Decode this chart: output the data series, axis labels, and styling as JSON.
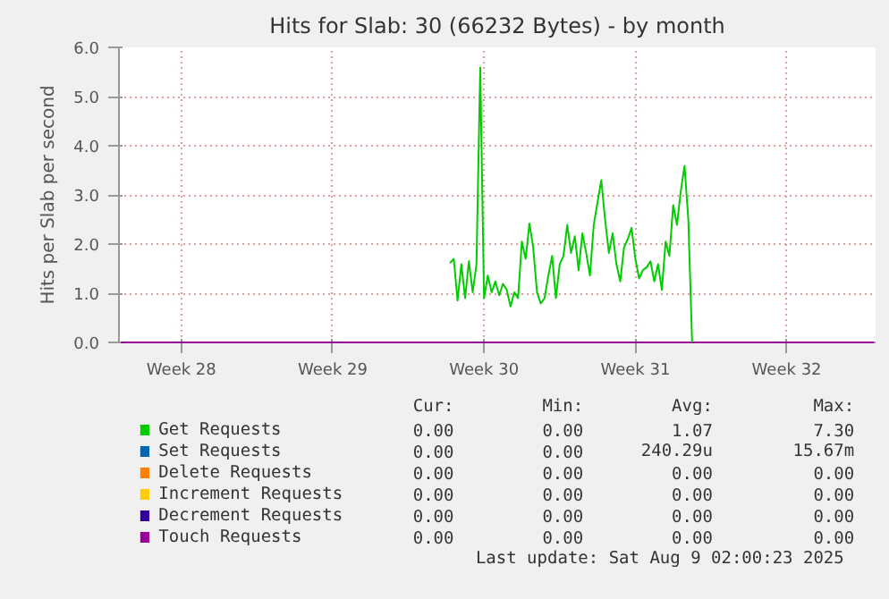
{
  "chart_data": {
    "type": "line",
    "title": "Hits for Slab: 30 (66232 Bytes) - by month",
    "ylabel": "Hits per Slab per second",
    "categories": [
      null,
      null,
      null,
      null,
      null,
      null,
      null,
      null,
      null,
      null,
      null,
      null,
      null,
      null,
      null,
      null,
      "Week 28",
      null,
      null,
      null,
      null,
      null,
      null,
      null,
      null,
      null,
      null,
      null,
      null,
      null,
      null,
      null,
      null,
      null,
      null,
      null,
      null,
      null,
      null,
      null,
      null,
      null,
      null,
      null,
      null,
      null,
      null,
      null,
      null,
      null,
      null,
      null,
      null,
      null,
      null,
      null,
      "Week 29",
      null,
      null,
      null,
      null,
      null,
      null,
      null,
      null,
      null,
      null,
      null,
      null,
      null,
      null,
      null,
      null,
      null,
      null,
      null,
      null,
      null,
      null,
      null,
      null,
      null,
      null,
      null,
      null,
      null,
      null,
      null,
      null,
      null,
      null,
      null,
      null,
      null,
      null,
      null,
      "Week 30",
      null,
      null,
      null,
      null,
      null,
      null,
      null,
      null,
      null,
      null,
      null,
      null,
      null,
      null,
      null,
      null,
      null,
      null,
      null,
      null,
      null,
      null,
      null,
      null,
      null,
      null,
      null,
      null,
      null,
      null,
      null,
      null,
      null,
      null,
      null,
      null,
      null,
      null,
      null,
      "Week 31",
      null,
      null,
      null,
      null,
      null,
      null,
      null,
      null,
      null,
      null,
      null,
      null,
      null,
      null,
      null,
      null,
      null,
      null,
      null,
      null,
      null,
      null,
      null,
      null,
      null,
      null,
      null,
      null,
      null,
      null,
      null,
      null,
      null,
      null,
      null,
      null,
      null,
      null,
      null,
      "Week 32",
      null,
      null,
      null,
      null,
      null,
      null,
      null,
      null,
      null,
      null,
      null,
      null,
      null,
      null,
      null,
      null,
      null,
      null,
      null,
      null,
      null,
      null,
      null
    ],
    "ylim": [
      0,
      6
    ],
    "yticks": [
      {
        "value": 0,
        "label": "0.0"
      },
      {
        "value": 1,
        "label": "1.0"
      },
      {
        "value": 2,
        "label": "2.0"
      },
      {
        "value": 3,
        "label": "3.0"
      },
      {
        "value": 4,
        "label": "4.0"
      },
      {
        "value": 5,
        "label": "5.0"
      },
      {
        "value": 6,
        "label": "6.0"
      }
    ],
    "grid": true,
    "legend": "bottom",
    "line_style": "solid",
    "series": [
      {
        "name": "Set Requests",
        "color": "#0066b3",
        "values": [
          null,
          null,
          null,
          null,
          null,
          null,
          null,
          null,
          null,
          null,
          null,
          null,
          null,
          null,
          null,
          null,
          null,
          null,
          null,
          null,
          null,
          null,
          null,
          null,
          null,
          null,
          null,
          null,
          null,
          null,
          null,
          null,
          null,
          null,
          null,
          null,
          null,
          null,
          null,
          null,
          null,
          null,
          null,
          null,
          null,
          null,
          null,
          null,
          null,
          null,
          null,
          null,
          null,
          null,
          null,
          null,
          null,
          null,
          null,
          null,
          null,
          null,
          null,
          null,
          null,
          null,
          null,
          null,
          null,
          null,
          null,
          null,
          null,
          null,
          null,
          null,
          null,
          null,
          null,
          null,
          null,
          null,
          null,
          null,
          null,
          null,
          null,
          null,
          null,
          null,
          null,
          null,
          null,
          null,
          null,
          null,
          null,
          null,
          null,
          null,
          null,
          null,
          null,
          null,
          null,
          null,
          null,
          null,
          null,
          null,
          null,
          null,
          null,
          null,
          null,
          null,
          null,
          null,
          null,
          null,
          null,
          null,
          null,
          null,
          null,
          null,
          null,
          null,
          null,
          null,
          null,
          null,
          null,
          null,
          null,
          null,
          null,
          null,
          null,
          null,
          null,
          null,
          null,
          null,
          null,
          null,
          null,
          null,
          null,
          null,
          null,
          null,
          null,
          null,
          null,
          null,
          null,
          null,
          null,
          null,
          null,
          null,
          null,
          null,
          null,
          null,
          null,
          null,
          null,
          null,
          null,
          null,
          null,
          null,
          null,
          null,
          null,
          null,
          null,
          null,
          null,
          null,
          null,
          null,
          null,
          null,
          null,
          null,
          null,
          null,
          null,
          null,
          null,
          null,
          null,
          null,
          null,
          null,
          null,
          null
        ]
      },
      {
        "name": "Delete Requests",
        "color": "#ff8000",
        "values": [
          null,
          null,
          null,
          null,
          null,
          null,
          null,
          null,
          null,
          null,
          null,
          null,
          null,
          null,
          null,
          null,
          null,
          null,
          null,
          null,
          null,
          null,
          null,
          null,
          null,
          null,
          null,
          null,
          null,
          null,
          null,
          null,
          null,
          null,
          null,
          null,
          null,
          null,
          null,
          null,
          null,
          null,
          null,
          null,
          null,
          null,
          null,
          null,
          null,
          null,
          null,
          null,
          null,
          null,
          null,
          null,
          null,
          null,
          null,
          null,
          null,
          null,
          null,
          null,
          null,
          null,
          null,
          null,
          null,
          null,
          null,
          null,
          null,
          null,
          null,
          null,
          null,
          null,
          null,
          null,
          null,
          null,
          null,
          null,
          null,
          null,
          null,
          null,
          null,
          null,
          null,
          null,
          null,
          null,
          null,
          null,
          null,
          null,
          null,
          null,
          null,
          null,
          null,
          null,
          null,
          null,
          null,
          null,
          null,
          null,
          null,
          null,
          null,
          null,
          null,
          null,
          null,
          null,
          null,
          null,
          null,
          null,
          null,
          null,
          null,
          null,
          null,
          null,
          null,
          null,
          null,
          null,
          null,
          null,
          null,
          null,
          null,
          null,
          null,
          null,
          null,
          null,
          null,
          null,
          null,
          null,
          null,
          null,
          null,
          null,
          null,
          null,
          null,
          null,
          null,
          null,
          null,
          null,
          null,
          null,
          null,
          null,
          null,
          null,
          null,
          null,
          null,
          null,
          null,
          null,
          null,
          null,
          null,
          null,
          null,
          null,
          null,
          null,
          null,
          null,
          null,
          null,
          null,
          null,
          null,
          null,
          null,
          null,
          null,
          null,
          null,
          null,
          null,
          null,
          null,
          null,
          null,
          null,
          null,
          null
        ]
      },
      {
        "name": "Increment Requests",
        "color": "#ffcc00",
        "values": [
          null,
          null,
          null,
          null,
          null,
          null,
          null,
          null,
          null,
          null,
          null,
          null,
          null,
          null,
          null,
          null,
          null,
          null,
          null,
          null,
          null,
          null,
          null,
          null,
          null,
          null,
          null,
          null,
          null,
          null,
          null,
          null,
          null,
          null,
          null,
          null,
          null,
          null,
          null,
          null,
          null,
          null,
          null,
          null,
          null,
          null,
          null,
          null,
          null,
          null,
          null,
          null,
          null,
          null,
          null,
          null,
          null,
          null,
          null,
          null,
          null,
          null,
          null,
          null,
          null,
          null,
          null,
          null,
          null,
          null,
          null,
          null,
          null,
          null,
          null,
          null,
          null,
          null,
          null,
          null,
          null,
          null,
          null,
          null,
          null,
          null,
          null,
          null,
          null,
          null,
          null,
          null,
          null,
          null,
          null,
          null,
          null,
          null,
          null,
          null,
          null,
          null,
          null,
          null,
          null,
          null,
          null,
          null,
          null,
          null,
          null,
          null,
          null,
          null,
          null,
          null,
          null,
          null,
          null,
          null,
          null,
          null,
          null,
          null,
          null,
          null,
          null,
          null,
          null,
          null,
          null,
          null,
          null,
          null,
          null,
          null,
          null,
          null,
          null,
          null,
          null,
          null,
          null,
          null,
          null,
          null,
          null,
          null,
          null,
          null,
          null,
          null,
          null,
          null,
          null,
          null,
          null,
          null,
          null,
          null,
          null,
          null,
          null,
          null,
          null,
          null,
          null,
          null,
          null,
          null,
          null,
          null,
          null,
          null,
          null,
          null,
          null,
          null,
          null,
          null,
          null,
          null,
          null,
          null,
          null,
          null,
          null,
          null,
          null,
          null,
          null,
          null,
          null,
          null,
          null,
          null,
          null,
          null,
          null,
          null
        ]
      },
      {
        "name": "Decrement Requests",
        "color": "#330099",
        "values": [
          null,
          null,
          null,
          null,
          null,
          null,
          null,
          null,
          null,
          null,
          null,
          null,
          null,
          null,
          null,
          null,
          null,
          null,
          null,
          null,
          null,
          null,
          null,
          null,
          null,
          null,
          null,
          null,
          null,
          null,
          null,
          null,
          null,
          null,
          null,
          null,
          null,
          null,
          null,
          null,
          null,
          null,
          null,
          null,
          null,
          null,
          null,
          null,
          null,
          null,
          null,
          null,
          null,
          null,
          null,
          null,
          null,
          null,
          null,
          null,
          null,
          null,
          null,
          null,
          null,
          null,
          null,
          null,
          null,
          null,
          null,
          null,
          null,
          null,
          null,
          null,
          null,
          null,
          null,
          null,
          null,
          null,
          null,
          null,
          null,
          null,
          null,
          null,
          null,
          null,
          null,
          null,
          null,
          null,
          null,
          null,
          null,
          null,
          null,
          null,
          null,
          null,
          null,
          null,
          null,
          null,
          null,
          null,
          null,
          null,
          null,
          null,
          null,
          null,
          null,
          null,
          null,
          null,
          null,
          null,
          null,
          null,
          null,
          null,
          null,
          null,
          null,
          null,
          null,
          null,
          null,
          null,
          null,
          null,
          null,
          null,
          null,
          null,
          null,
          null,
          null,
          null,
          null,
          null,
          null,
          null,
          null,
          null,
          null,
          null,
          null,
          null,
          null,
          null,
          null,
          null,
          null,
          null,
          null,
          null,
          null,
          null,
          null,
          null,
          null,
          null,
          null,
          null,
          null,
          null,
          null,
          null,
          null,
          null,
          null,
          null,
          null,
          null,
          null,
          null,
          null,
          null,
          null,
          null,
          null,
          null,
          null,
          null,
          null,
          null,
          null,
          null,
          null,
          null,
          null,
          null,
          null,
          null,
          null,
          null
        ]
      },
      {
        "name": "Touch Requests",
        "color": "#990099",
        "values": [
          0,
          0,
          0,
          0,
          0,
          0,
          0,
          0,
          0,
          0,
          0,
          0,
          0,
          0,
          0,
          0,
          0,
          0,
          0,
          0,
          0,
          0,
          0,
          0,
          0,
          0,
          0,
          0,
          0,
          0,
          0,
          0,
          0,
          0,
          0,
          0,
          0,
          0,
          0,
          0,
          0,
          0,
          0,
          0,
          0,
          0,
          0,
          0,
          0,
          0,
          0,
          0,
          0,
          0,
          0,
          0,
          0,
          0,
          0,
          0,
          0,
          0,
          0,
          0,
          0,
          0,
          0,
          0,
          0,
          0,
          0,
          0,
          0,
          0,
          0,
          0,
          0,
          0,
          0,
          0,
          0,
          0,
          0,
          0,
          0,
          0,
          0,
          0,
          0,
          0,
          0,
          0,
          0,
          0,
          0,
          0,
          0,
          0,
          0,
          0,
          0,
          0,
          0,
          0,
          0,
          0,
          0,
          0,
          0,
          0,
          0,
          0,
          0,
          0,
          0,
          0,
          0,
          0,
          0,
          0,
          0,
          0,
          0,
          0,
          0,
          0,
          0,
          0,
          0,
          0,
          0,
          0,
          0,
          0,
          0,
          0,
          0,
          0,
          0,
          0,
          0,
          0,
          0,
          0,
          0,
          0,
          0,
          0,
          0,
          0,
          0,
          0,
          0,
          0,
          0,
          0,
          0,
          0,
          0,
          0,
          0,
          0,
          0,
          0,
          0,
          0,
          0,
          0,
          0,
          0,
          0,
          0,
          0,
          0,
          0,
          0,
          0,
          0,
          0,
          0,
          0,
          0,
          0,
          0,
          0,
          0,
          0,
          0,
          0,
          0,
          0,
          0,
          0,
          0,
          0,
          0,
          0,
          0,
          0,
          0
        ]
      },
      {
        "name": "Get Requests",
        "color": "#00cc00",
        "values": [
          null,
          null,
          null,
          null,
          null,
          null,
          null,
          null,
          null,
          null,
          null,
          null,
          null,
          null,
          null,
          null,
          null,
          null,
          null,
          null,
          null,
          null,
          null,
          null,
          null,
          null,
          null,
          null,
          null,
          null,
          null,
          null,
          null,
          null,
          null,
          null,
          null,
          null,
          null,
          null,
          null,
          null,
          null,
          null,
          null,
          null,
          null,
          null,
          null,
          null,
          null,
          null,
          null,
          null,
          null,
          null,
          null,
          null,
          null,
          null,
          null,
          null,
          null,
          null,
          null,
          null,
          null,
          null,
          null,
          null,
          null,
          null,
          null,
          null,
          null,
          null,
          null,
          null,
          null,
          null,
          null,
          null,
          null,
          null,
          null,
          null,
          null,
          1.61,
          1.7,
          0.85,
          1.59,
          0.9,
          1.65,
          1.02,
          1.59,
          5.59,
          0.9,
          1.36,
          1.02,
          1.24,
          0.96,
          1.19,
          1.07,
          0.73,
          1.02,
          0.9,
          2.05,
          1.7,
          2.42,
          1.93,
          1.02,
          0.79,
          0.9,
          1.36,
          1.76,
          0.9,
          1.59,
          1.76,
          2.39,
          1.82,
          2.16,
          1.47,
          2.22,
          1.82,
          1.36,
          2.39,
          2.85,
          3.3,
          2.5,
          1.82,
          2.22,
          1.59,
          1.24,
          1.93,
          2.1,
          2.33,
          1.7,
          1.3,
          1.47,
          1.53,
          1.65,
          1.24,
          1.59,
          1.07,
          2.05,
          1.76,
          2.79,
          2.39,
          3.07,
          3.59,
          2.5,
          0,
          null,
          null,
          null,
          null,
          null,
          null,
          null,
          null,
          null,
          null,
          null,
          null,
          null,
          null,
          null,
          null,
          null,
          null,
          null,
          null,
          null,
          null,
          null,
          null,
          null,
          null,
          null,
          null,
          null,
          null,
          null,
          null,
          null,
          null,
          null,
          null,
          null,
          null,
          null,
          null,
          null,
          null,
          null,
          null,
          null,
          null,
          null,
          null
        ]
      }
    ],
    "annotations": [
      "Cur:",
      "Min:",
      "Avg:",
      "Max:",
      "0.00",
      "0.00",
      "1.07",
      "7.30",
      "0.00",
      "0.00",
      "240.29u",
      "15.67m",
      "0.00",
      "0.00",
      "0.00",
      "0.00",
      "0.00",
      "0.00",
      "0.00",
      "0.00",
      "0.00",
      "0.00",
      "0.00",
      "0.00",
      "0.00",
      "0.00",
      "0.00",
      "0.00",
      "Last update: Sat Aug  9 02:00:23 2025"
    ]
  }
}
